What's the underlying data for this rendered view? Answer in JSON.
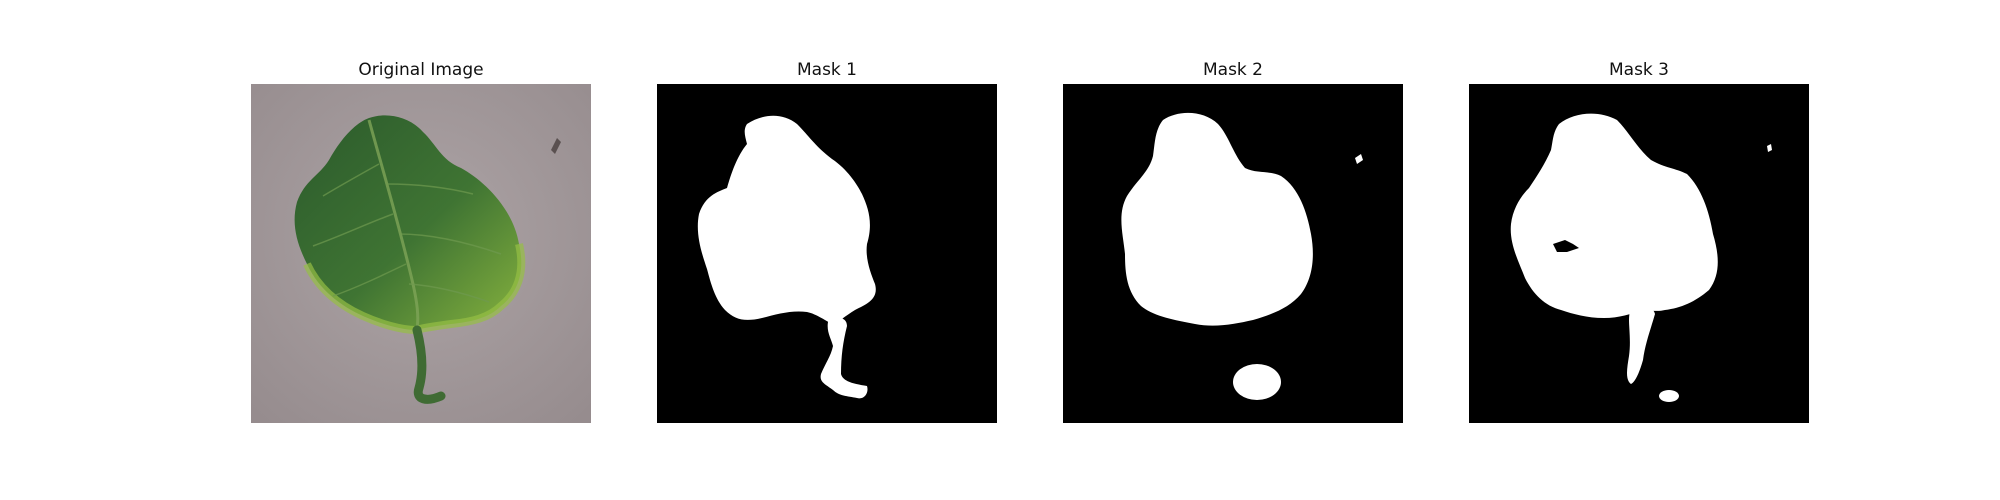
{
  "panels": [
    {
      "title": "Original Image",
      "content": "photo"
    },
    {
      "title": "Mask 1",
      "content": "mask"
    },
    {
      "title": "Mask 2",
      "content": "mask"
    },
    {
      "title": "Mask 3",
      "content": "mask"
    }
  ],
  "colors": {
    "background": "#ffffff",
    "mask_background": "#000000",
    "mask_foreground": "#ffffff",
    "ground": "#a39a9b",
    "leaf_dark": "#2f5d2c",
    "leaf_light": "#7fae3a"
  }
}
